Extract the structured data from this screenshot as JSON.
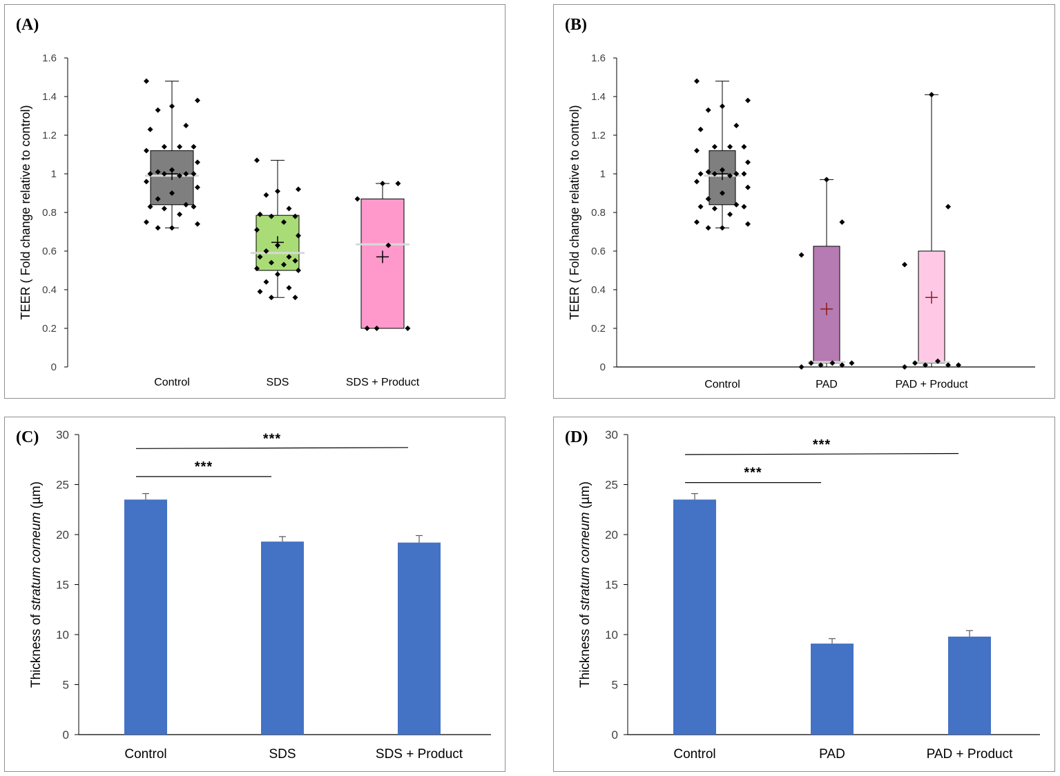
{
  "colors": {
    "bar_blue": "#4472C4",
    "control_box": "#7f7f7f",
    "sds_box": "#a9dc76",
    "sds_product_box": "#ff99cc",
    "pad_box": "#b57bb2",
    "pad_product_box": "#ffc9e6",
    "median_line": "#d9d9d9",
    "mean_marker_dark": "#000000",
    "mean_marker_red": "#8b1a1a",
    "axis": "#000000"
  },
  "chart_data": [
    {
      "panel": "(A)",
      "type": "box",
      "ylabel": "TEER ( Fold change relative to control)",
      "ylim": [
        0,
        1.6
      ],
      "yticks": [
        "0",
        "0.2",
        "0.4",
        "0.6",
        "0.8",
        "1",
        "1.2",
        "1.4",
        "1.6"
      ],
      "groups": [
        {
          "name": "Control",
          "q1": 0.84,
          "median": 0.99,
          "q3": 1.12,
          "min": 0.72,
          "max": 1.48,
          "mean": 1.0,
          "points": [
            1.48,
            1.38,
            1.35,
            1.33,
            1.25,
            1.23,
            1.14,
            1.14,
            1.14,
            1.12,
            1.06,
            1.02,
            1.01,
            1.0,
            1.0,
            1.0,
            1.0,
            0.99,
            0.96,
            0.93,
            0.9,
            0.87,
            0.84,
            0.83,
            0.83,
            0.82,
            0.79,
            0.75,
            0.74,
            0.72,
            0.72
          ]
        },
        {
          "name": "SDS",
          "q1": 0.5,
          "median": 0.59,
          "q3": 0.785,
          "min": 0.36,
          "max": 1.07,
          "mean": 0.645,
          "points": [
            1.07,
            0.92,
            0.91,
            0.89,
            0.82,
            0.79,
            0.78,
            0.78,
            0.75,
            0.71,
            0.68,
            0.63,
            0.6,
            0.57,
            0.57,
            0.55,
            0.54,
            0.53,
            0.51,
            0.5,
            0.48,
            0.44,
            0.41,
            0.39,
            0.36,
            0.36
          ]
        },
        {
          "name": "SDS + Product",
          "q1": 0.2,
          "median": 0.635,
          "q3": 0.87,
          "min": 0.2,
          "max": 0.95,
          "mean": 0.57,
          "points": [
            0.95,
            0.95,
            0.87,
            0.63,
            0.2,
            0.2,
            0.2
          ]
        }
      ]
    },
    {
      "panel": "(B)",
      "type": "box",
      "ylabel": "TEER ( Fold change relative to control)",
      "ylim": [
        0,
        1.6
      ],
      "yticks": [
        "0",
        "0.2",
        "0.4",
        "0.6",
        "0.8",
        "1",
        "1.2",
        "1.4",
        "1.6"
      ],
      "groups": [
        {
          "name": "Control",
          "q1": 0.84,
          "median": 0.99,
          "q3": 1.12,
          "min": 0.72,
          "max": 1.48,
          "mean": 1.0,
          "points": [
            1.48,
            1.38,
            1.35,
            1.33,
            1.25,
            1.23,
            1.14,
            1.14,
            1.14,
            1.12,
            1.06,
            1.02,
            1.01,
            1.0,
            1.0,
            1.0,
            1.0,
            0.99,
            0.96,
            0.93,
            0.9,
            0.87,
            0.84,
            0.83,
            0.83,
            0.82,
            0.79,
            0.75,
            0.74,
            0.72,
            0.72
          ]
        },
        {
          "name": "PAD",
          "q1": 0.02,
          "median": 0.025,
          "q3": 0.625,
          "min": 0.0,
          "max": 0.97,
          "mean": 0.3,
          "points": [
            0.97,
            0.75,
            0.58,
            0.02,
            0.02,
            0.02,
            0.01,
            0.01,
            0.0
          ]
        },
        {
          "name": "PAD + Product",
          "q1": 0.02,
          "median": 0.025,
          "q3": 0.6,
          "min": 0.0,
          "max": 1.41,
          "mean": 0.36,
          "points": [
            1.41,
            0.83,
            0.53,
            0.03,
            0.02,
            0.01,
            0.01,
            0.01,
            0.0
          ]
        }
      ]
    },
    {
      "panel": "(C)",
      "type": "bar",
      "ylabel_prefix": "Thickness of ",
      "ylabel_italic": "stratum corneum",
      "ylabel_suffix": " (µm)",
      "ylim": [
        0,
        30
      ],
      "yticks": [
        "0",
        "5",
        "10",
        "15",
        "20",
        "25",
        "30"
      ],
      "categories": [
        "Control",
        "SDS",
        "SDS + Product"
      ],
      "values": [
        23.5,
        19.3,
        19.2
      ],
      "errors": [
        0.6,
        0.5,
        0.7
      ],
      "significance": [
        {
          "from": 0,
          "to": 1,
          "label": "***",
          "level": 25.8
        },
        {
          "from": 0,
          "to": 2,
          "label": "***",
          "level": 28.6
        }
      ]
    },
    {
      "panel": "(D)",
      "type": "bar",
      "ylabel_prefix": "Thickness of ",
      "ylabel_italic": "stratum corneum",
      "ylabel_suffix": " (µm)",
      "ylim": [
        0,
        30
      ],
      "yticks": [
        "0",
        "5",
        "10",
        "15",
        "20",
        "25",
        "30"
      ],
      "categories": [
        "Control",
        "PAD",
        "PAD + Product"
      ],
      "values": [
        23.5,
        9.1,
        9.8
      ],
      "errors": [
        0.6,
        0.5,
        0.6
      ],
      "significance": [
        {
          "from": 0,
          "to": 1,
          "label": "***",
          "level": 25.2
        },
        {
          "from": 0,
          "to": 2,
          "label": "***",
          "level": 28.0
        }
      ]
    }
  ]
}
